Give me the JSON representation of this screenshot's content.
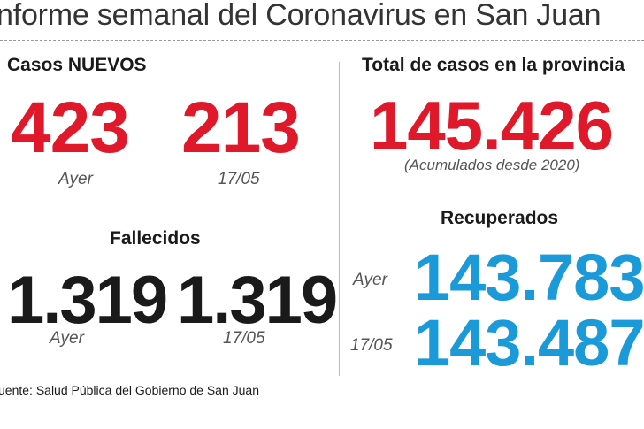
{
  "title": "nforme semanal del Coronavirus en San Juan",
  "new_cases": {
    "heading": "Casos NUEVOS",
    "yesterday": {
      "value": "423",
      "label": "Ayer"
    },
    "date": {
      "value": "213",
      "label": "17/05"
    }
  },
  "deaths": {
    "heading": "Fallecidos",
    "yesterday": {
      "value": "1.319",
      "label": "Ayer"
    },
    "date": {
      "value": "1.319",
      "label": "17/05"
    }
  },
  "total": {
    "heading": "Total de casos en la provincia",
    "value": "145.426",
    "note": "(Acumulados desde 2020)"
  },
  "recovered": {
    "heading": "Recuperados",
    "yesterday": {
      "label": "Ayer",
      "value": "143.783"
    },
    "date": {
      "label": "17/05",
      "value": "143.487"
    }
  },
  "source": "uente: Salud Pública del Gobierno de San Juan",
  "colors": {
    "red": "#e0192a",
    "blue": "#1a9ad8",
    "text": "#1a1a1a"
  }
}
